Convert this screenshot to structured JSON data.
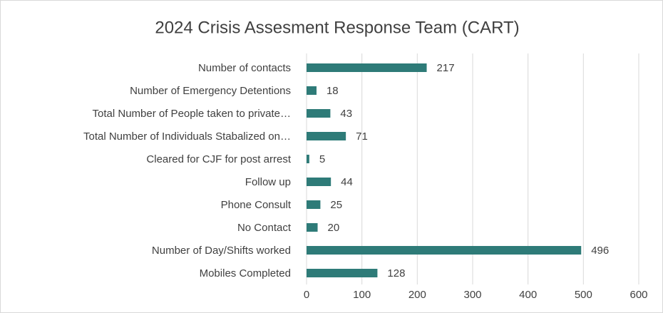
{
  "chart_data": {
    "type": "hbar",
    "title": "2024 Crisis Assesment Response Team (CART)",
    "categories": [
      "Number of contacts",
      "Number of Emergency Detentions",
      "Total Number of People taken to private…",
      "Total Number of Individuals Stabalized on…",
      "Cleared for CJF for post arrest",
      "Follow up",
      "Phone Consult",
      "No Contact",
      "Number of Day/Shifts worked",
      "Mobiles Completed"
    ],
    "values": [
      217,
      18,
      43,
      71,
      5,
      44,
      25,
      20,
      496,
      128
    ],
    "color": "#2e7b78",
    "xlim": [
      0,
      600
    ],
    "xticks": [
      0,
      100,
      200,
      300,
      400,
      500,
      600
    ],
    "grid": true
  }
}
